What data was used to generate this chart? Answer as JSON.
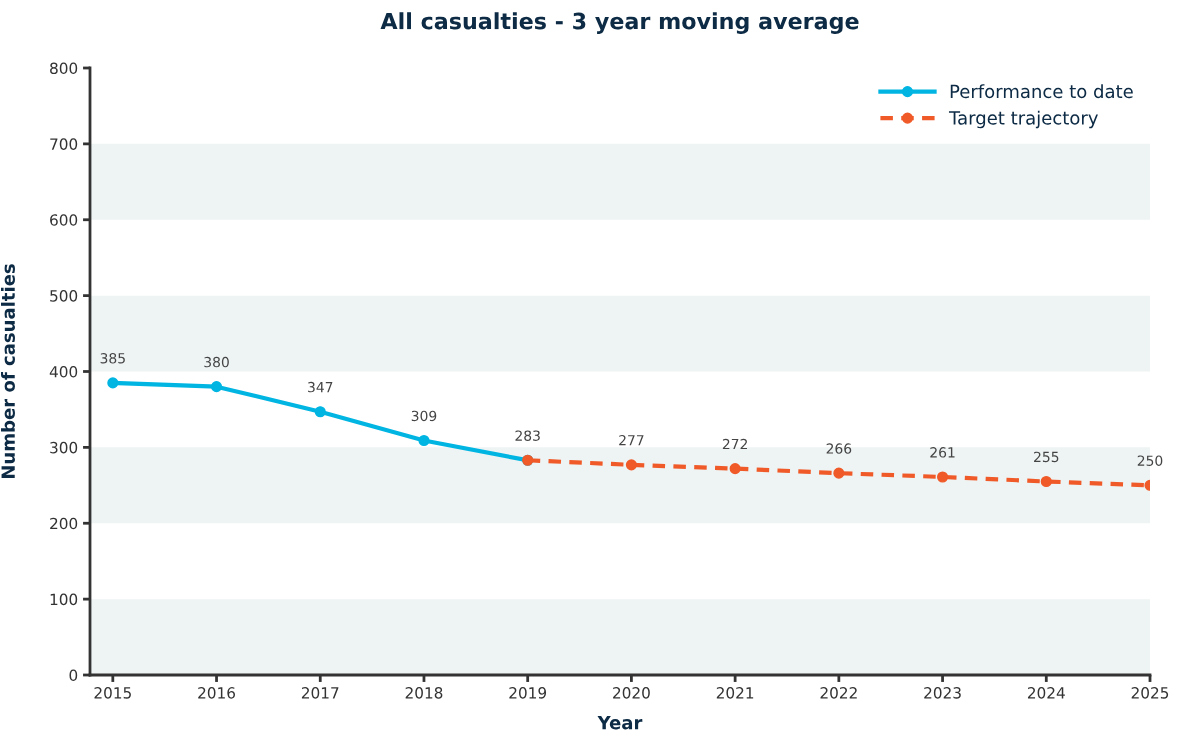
{
  "chart_data": {
    "type": "line",
    "title": "All casualties - 3 year moving average",
    "xlabel": "Year",
    "ylabel": "Number of casualties",
    "xlim": [
      2014.78,
      2025
    ],
    "xticks": [
      2015,
      2016,
      2017,
      2018,
      2019,
      2020,
      2021,
      2022,
      2023,
      2024,
      2025
    ],
    "ylim": [
      0,
      800
    ],
    "yticks": [
      0,
      100,
      200,
      300,
      400,
      500,
      600,
      700,
      800
    ],
    "grid": false,
    "legend": "top right",
    "marker": "circle",
    "bands": [
      {
        "axis": "y",
        "from": 100,
        "to": 200,
        "color": "#ffffff"
      },
      {
        "axis": "y",
        "from": 300,
        "to": 400,
        "color": "#ffffff"
      },
      {
        "axis": "y",
        "from": 500,
        "to": 600,
        "color": "#ffffff"
      },
      {
        "axis": "y",
        "from": 700,
        "to": 800,
        "color": "#ffffff"
      }
    ],
    "series": [
      {
        "name": "Performance to date",
        "color": "#00b5e2",
        "line_style": "solid",
        "x": [
          2015,
          2016,
          2017,
          2018,
          2019
        ],
        "values": [
          385,
          380,
          347,
          309,
          283
        ],
        "value_labels": [
          "385",
          "380",
          "347",
          "309",
          "283"
        ]
      },
      {
        "name": "Target trajectory",
        "color": "#f05a28",
        "line_style": "dashed",
        "x": [
          2019,
          2020,
          2021,
          2022,
          2023,
          2024,
          2025
        ],
        "values": [
          283,
          277,
          272,
          266,
          261,
          255,
          250
        ],
        "value_labels": [
          null,
          "277",
          "272",
          "266",
          "261",
          "255",
          "250"
        ]
      }
    ]
  }
}
